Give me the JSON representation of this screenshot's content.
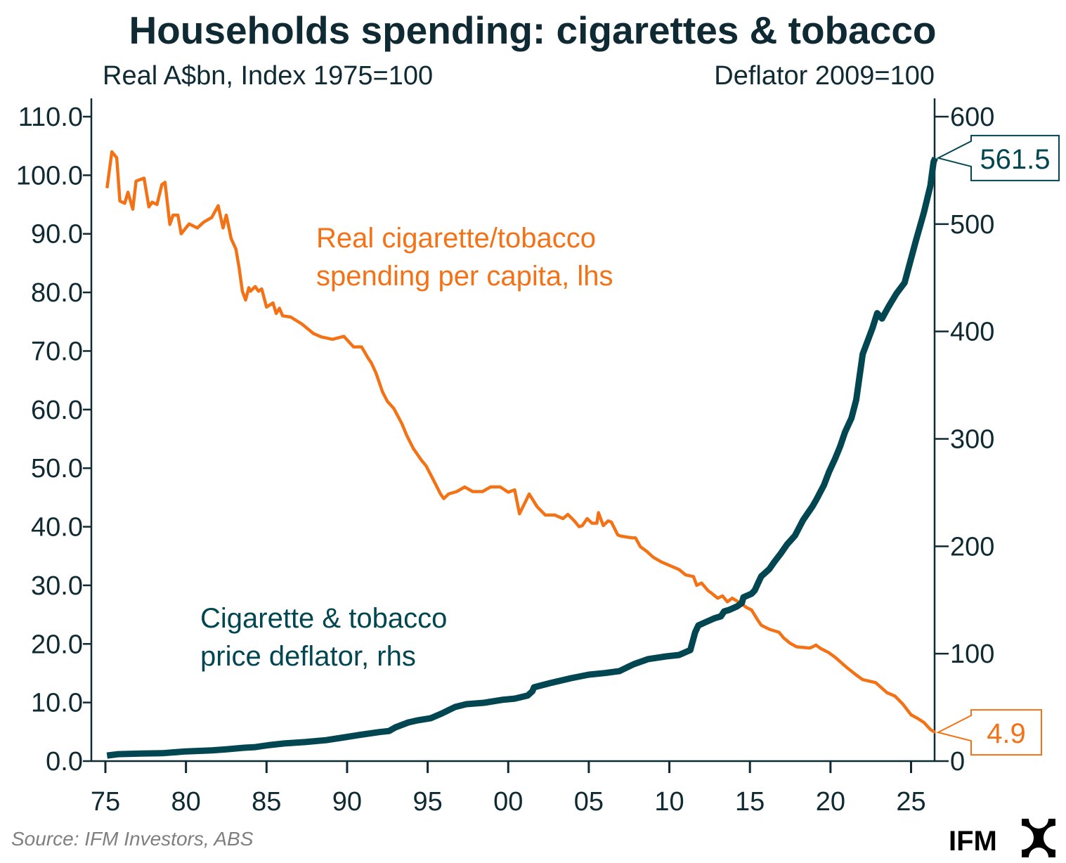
{
  "chart_data": {
    "type": "line",
    "title": "Households spending: cigarettes & tobacco",
    "left_axis_label": "Real A$bn, Index 1975=100",
    "right_axis_label": "Deflator 2009=100",
    "x_ticks": [
      "75",
      "80",
      "85",
      "90",
      "95",
      "00",
      "05",
      "10",
      "15",
      "20",
      "25"
    ],
    "x_range": [
      1975,
      2026.5
    ],
    "left_ticks": [
      "0.0",
      "10.0",
      "20.0",
      "30.0",
      "40.0",
      "50.0",
      "60.0",
      "70.0",
      "80.0",
      "90.0",
      "100.0",
      "110.0"
    ],
    "left_range": [
      0,
      110
    ],
    "right_ticks": [
      "0",
      "100",
      "200",
      "300",
      "400",
      "500",
      "600"
    ],
    "right_range": [
      0,
      600
    ],
    "grid": false,
    "series": [
      {
        "name": "Real cigarette/tobacco spending per capita, lhs",
        "axis": "left",
        "color": "#f47216",
        "label_lines": [
          "Real cigarette/tobacco",
          "spending per capita, lhs"
        ],
        "end_label": "4.9",
        "points": [
          [
            1975.1,
            97.8
          ],
          [
            1975.4,
            104.0
          ],
          [
            1975.7,
            103.0
          ],
          [
            1975.9,
            95.6
          ],
          [
            1976.2,
            95.2
          ],
          [
            1976.4,
            97.1
          ],
          [
            1976.7,
            94.2
          ],
          [
            1976.9,
            99.0
          ],
          [
            1977.4,
            99.5
          ],
          [
            1977.7,
            94.6
          ],
          [
            1977.9,
            95.4
          ],
          [
            1978.2,
            95.0
          ],
          [
            1978.5,
            98.4
          ],
          [
            1978.7,
            98.8
          ],
          [
            1979.0,
            91.6
          ],
          [
            1979.2,
            93.2
          ],
          [
            1979.5,
            93.2
          ],
          [
            1979.7,
            90.0
          ],
          [
            1980.2,
            91.7
          ],
          [
            1980.7,
            91.0
          ],
          [
            1981.1,
            92.0
          ],
          [
            1981.6,
            92.8
          ],
          [
            1982.0,
            94.8
          ],
          [
            1982.3,
            91.0
          ],
          [
            1982.5,
            93.2
          ],
          [
            1982.8,
            89.2
          ],
          [
            1983.1,
            87.4
          ],
          [
            1983.3,
            84.2
          ],
          [
            1983.5,
            80.2
          ],
          [
            1983.7,
            78.7
          ],
          [
            1983.9,
            80.8
          ],
          [
            1984.0,
            80.2
          ],
          [
            1984.3,
            81.0
          ],
          [
            1984.5,
            80.2
          ],
          [
            1984.7,
            80.6
          ],
          [
            1985.0,
            77.5
          ],
          [
            1985.4,
            78.2
          ],
          [
            1985.6,
            76.4
          ],
          [
            1985.8,
            77.3
          ],
          [
            1986.0,
            76.0
          ],
          [
            1986.5,
            75.8
          ],
          [
            1987.2,
            74.6
          ],
          [
            1987.9,
            73.0
          ],
          [
            1988.4,
            72.4
          ],
          [
            1989.1,
            72.0
          ],
          [
            1989.8,
            72.5
          ],
          [
            1990.4,
            70.7
          ],
          [
            1990.9,
            70.7
          ],
          [
            1991.3,
            68.8
          ],
          [
            1991.5,
            68.0
          ],
          [
            1991.8,
            66.2
          ],
          [
            1992.2,
            63.0
          ],
          [
            1992.5,
            61.4
          ],
          [
            1992.9,
            60.2
          ],
          [
            1993.4,
            57.6
          ],
          [
            1993.7,
            55.6
          ],
          [
            1994.1,
            53.4
          ],
          [
            1994.6,
            51.4
          ],
          [
            1994.9,
            50.4
          ],
          [
            1995.3,
            48.3
          ],
          [
            1995.8,
            45.6
          ],
          [
            1996.0,
            44.8
          ],
          [
            1996.3,
            45.6
          ],
          [
            1996.8,
            46.0
          ],
          [
            1997.3,
            46.8
          ],
          [
            1997.8,
            46.0
          ],
          [
            1998.4,
            46.0
          ],
          [
            1998.9,
            46.8
          ],
          [
            1999.5,
            46.8
          ],
          [
            2000.0,
            45.9
          ],
          [
            2000.4,
            46.3
          ],
          [
            2000.7,
            42.2
          ],
          [
            2001.3,
            45.6
          ],
          [
            2001.8,
            43.4
          ],
          [
            2002.3,
            42.0
          ],
          [
            2002.9,
            42.0
          ],
          [
            2003.4,
            41.4
          ],
          [
            2003.7,
            42.1
          ],
          [
            2004.1,
            41.0
          ],
          [
            2004.4,
            40.0
          ],
          [
            2004.6,
            40.2
          ],
          [
            2004.9,
            41.4
          ],
          [
            2005.2,
            40.6
          ],
          [
            2005.5,
            40.6
          ],
          [
            2005.6,
            42.4
          ],
          [
            2005.9,
            40.2
          ],
          [
            2006.2,
            41.0
          ],
          [
            2006.4,
            40.8
          ],
          [
            2006.8,
            38.6
          ],
          [
            2007.0,
            38.4
          ],
          [
            2007.7,
            38.1
          ],
          [
            2007.9,
            38.1
          ],
          [
            2008.2,
            36.6
          ],
          [
            2008.6,
            35.8
          ],
          [
            2009.0,
            34.8
          ],
          [
            2009.5,
            34.0
          ],
          [
            2010.1,
            33.3
          ],
          [
            2010.6,
            32.7
          ],
          [
            2011.0,
            31.8
          ],
          [
            2011.5,
            31.5
          ],
          [
            2011.7,
            30.0
          ],
          [
            2012.0,
            30.4
          ],
          [
            2012.4,
            29.1
          ],
          [
            2012.6,
            28.7
          ],
          [
            2013.0,
            27.8
          ],
          [
            2013.3,
            28.2
          ],
          [
            2013.6,
            27.2
          ],
          [
            2013.9,
            27.8
          ],
          [
            2014.4,
            27.0
          ],
          [
            2014.8,
            26.2
          ],
          [
            2015.1,
            25.8
          ],
          [
            2015.5,
            24.0
          ],
          [
            2015.7,
            23.2
          ],
          [
            2016.2,
            22.5
          ],
          [
            2016.8,
            22.0
          ],
          [
            2017.1,
            21.0
          ],
          [
            2017.5,
            20.1
          ],
          [
            2017.9,
            19.5
          ],
          [
            2018.7,
            19.3
          ],
          [
            2018.9,
            19.5
          ],
          [
            2019.1,
            19.8
          ],
          [
            2019.4,
            19.2
          ],
          [
            2019.9,
            18.5
          ],
          [
            2020.3,
            17.7
          ],
          [
            2021.0,
            16.0
          ],
          [
            2021.6,
            14.7
          ],
          [
            2022.0,
            13.9
          ],
          [
            2022.8,
            13.4
          ],
          [
            2023.5,
            11.7
          ],
          [
            2024.0,
            11.1
          ],
          [
            2024.5,
            9.7
          ],
          [
            2025.0,
            7.9
          ],
          [
            2025.4,
            7.3
          ],
          [
            2025.8,
            6.6
          ],
          [
            2026.2,
            5.4
          ],
          [
            2026.5,
            4.9
          ]
        ]
      },
      {
        "name": "Cigarette & tobacco price deflator, rhs",
        "axis": "right",
        "color": "#014651",
        "label_lines": [
          "Cigarette & tobacco",
          "price deflator, rhs"
        ],
        "end_label": "561.5",
        "points": [
          [
            1975.1,
            5.2
          ],
          [
            1975.8,
            6.5
          ],
          [
            1977.2,
            7.0
          ],
          [
            1978.5,
            7.3
          ],
          [
            1980.0,
            9.0
          ],
          [
            1981.6,
            10.0
          ],
          [
            1982.5,
            11.0
          ],
          [
            1983.6,
            12.4
          ],
          [
            1984.3,
            13.0
          ],
          [
            1985.2,
            15.0
          ],
          [
            1986.1,
            16.4
          ],
          [
            1987.4,
            17.7
          ],
          [
            1988.7,
            19.5
          ],
          [
            1989.6,
            21.6
          ],
          [
            1990.7,
            24.2
          ],
          [
            1992.0,
            27.0
          ],
          [
            1992.6,
            28.0
          ],
          [
            1993.0,
            31.4
          ],
          [
            1993.8,
            36.0
          ],
          [
            1994.4,
            38.0
          ],
          [
            1995.2,
            40.0
          ],
          [
            1995.9,
            44.5
          ],
          [
            1996.7,
            50.4
          ],
          [
            1997.4,
            53.0
          ],
          [
            1998.5,
            54.3
          ],
          [
            1999.6,
            57.0
          ],
          [
            2000.4,
            58.2
          ],
          [
            2001.2,
            61.0
          ],
          [
            2001.5,
            65.0
          ],
          [
            2001.6,
            68.7
          ],
          [
            2002.6,
            72.6
          ],
          [
            2003.9,
            77.2
          ],
          [
            2005.0,
            80.5
          ],
          [
            2006.0,
            82.0
          ],
          [
            2006.9,
            83.8
          ],
          [
            2007.8,
            90.3
          ],
          [
            2008.7,
            95.0
          ],
          [
            2009.8,
            97.5
          ],
          [
            2010.6,
            98.8
          ],
          [
            2011.0,
            101.4
          ],
          [
            2011.3,
            103.4
          ],
          [
            2011.6,
            119.8
          ],
          [
            2011.8,
            126.3
          ],
          [
            2012.2,
            129.0
          ],
          [
            2012.8,
            133.0
          ],
          [
            2013.2,
            134.8
          ],
          [
            2013.4,
            139.4
          ],
          [
            2013.7,
            140.7
          ],
          [
            2014.2,
            144.0
          ],
          [
            2014.5,
            147.2
          ],
          [
            2014.6,
            152.5
          ],
          [
            2015.1,
            155.8
          ],
          [
            2015.3,
            159.0
          ],
          [
            2015.5,
            165.6
          ],
          [
            2015.7,
            172.0
          ],
          [
            2016.2,
            178.7
          ],
          [
            2016.5,
            185.2
          ],
          [
            2016.9,
            193.0
          ],
          [
            2017.3,
            201.6
          ],
          [
            2017.8,
            210.0
          ],
          [
            2018.3,
            224.5
          ],
          [
            2018.9,
            237.6
          ],
          [
            2019.1,
            242.8
          ],
          [
            2019.6,
            257.2
          ],
          [
            2019.9,
            269.0
          ],
          [
            2020.3,
            282.0
          ],
          [
            2020.6,
            293.0
          ],
          [
            2020.9,
            306.3
          ],
          [
            2021.3,
            319.4
          ],
          [
            2021.6,
            336.5
          ],
          [
            2022.0,
            379.0
          ],
          [
            2022.6,
            403.0
          ],
          [
            2022.9,
            417.0
          ],
          [
            2023.2,
            412.0
          ],
          [
            2023.6,
            423.0
          ],
          [
            2024.1,
            435.5
          ],
          [
            2024.6,
            445.4
          ],
          [
            2025.3,
            484.6
          ],
          [
            2025.8,
            510.8
          ],
          [
            2026.2,
            535.7
          ],
          [
            2026.3,
            547.0
          ],
          [
            2026.4,
            558.0
          ],
          [
            2026.5,
            561.5
          ]
        ]
      }
    ]
  },
  "footer": {
    "source": "Source: IFM Investors, ABS",
    "logo_text": "IFM"
  }
}
